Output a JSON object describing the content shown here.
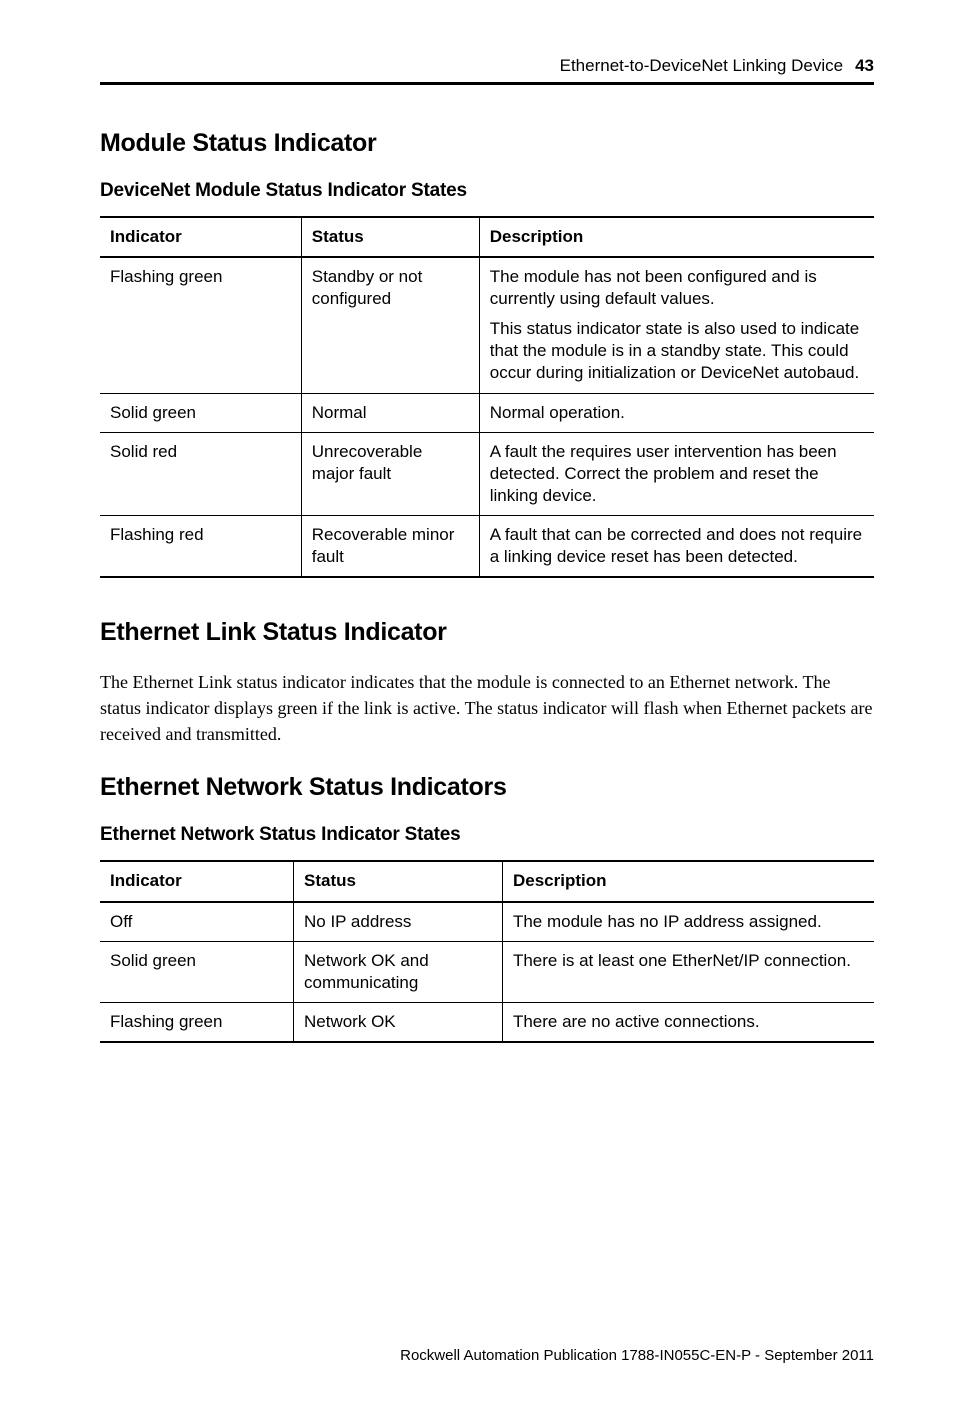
{
  "header": {
    "title": "Ethernet-to-DeviceNet Linking Device",
    "page_number": "43"
  },
  "section1": {
    "heading": "Module Status Indicator",
    "subheading": "DeviceNet Module Status Indicator States",
    "table": {
      "columns": [
        "Indicator",
        "Status",
        "Description"
      ],
      "rows": [
        {
          "indicator": "Flashing green",
          "status": "Standby or not configured",
          "description_p1": "The module has not been configured and is currently using default values.",
          "description_p2": "This status indicator state is also used to indicate that the module is in a standby state. This could occur during initialization or DeviceNet autobaud."
        },
        {
          "indicator": "Solid green",
          "status": "Normal",
          "description_p1": "Normal operation."
        },
        {
          "indicator": "Solid red",
          "status": "Unrecoverable major fault",
          "description_p1": "A fault the requires user intervention has been detected. Correct the problem and reset the linking device."
        },
        {
          "indicator": "Flashing red",
          "status": "Recoverable minor fault",
          "description_p1": "A fault that can be corrected and does not require a linking device reset has been detected."
        }
      ]
    }
  },
  "section2": {
    "heading": "Ethernet Link Status Indicator",
    "body": "The Ethernet Link status indicator indicates that the module is connected to an Ethernet network. The status indicator displays green if the link is active. The status indicator will flash when Ethernet packets are received and transmitted."
  },
  "section3": {
    "heading": "Ethernet Network Status Indicators",
    "subheading": "Ethernet Network Status Indicator States",
    "table": {
      "columns": [
        "Indicator",
        "Status",
        "Description"
      ],
      "rows": [
        {
          "indicator": "Off",
          "status": "No IP address",
          "description": "The module has no IP address assigned."
        },
        {
          "indicator": "Solid green",
          "status": "Network OK and communicating",
          "description": "There is at least one EtherNet/IP connection."
        },
        {
          "indicator": "Flashing green",
          "status": "Network OK",
          "description": "There are no active connections."
        }
      ]
    }
  },
  "footer": {
    "text": "Rockwell Automation Publication  1788-IN055C-EN-P - September 2011"
  }
}
